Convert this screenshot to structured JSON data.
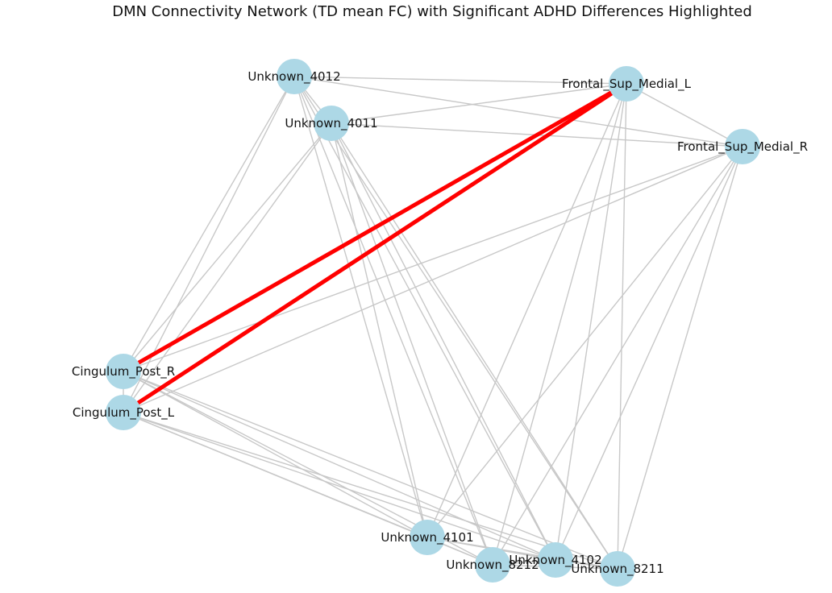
{
  "title": "DMN Connectivity Network (TD mean FC) with Significant ADHD Differences Highlighted",
  "colors": {
    "node_fill": "#add8e6",
    "edge_normal": "#c8c8c8",
    "edge_significant": "#ff0000"
  },
  "nodes": [
    {
      "id": "Unknown_4012",
      "label": "Unknown_4012"
    },
    {
      "id": "Unknown_4011",
      "label": "Unknown_4011"
    },
    {
      "id": "Frontal_Sup_Medial_L",
      "label": "Frontal_Sup_Medial_L"
    },
    {
      "id": "Frontal_Sup_Medial_R",
      "label": "Frontal_Sup_Medial_R"
    },
    {
      "id": "Cingulum_Post_R",
      "label": "Cingulum_Post_R"
    },
    {
      "id": "Cingulum_Post_L",
      "label": "Cingulum_Post_L"
    },
    {
      "id": "Unknown_4101",
      "label": "Unknown_4101"
    },
    {
      "id": "Unknown_8212",
      "label": "Unknown_8212"
    },
    {
      "id": "Unknown_4102",
      "label": "Unknown_4102"
    },
    {
      "id": "Unknown_8211",
      "label": "Unknown_8211"
    }
  ],
  "edges": [
    [
      "Unknown_4012",
      "Unknown_4011"
    ],
    [
      "Unknown_4012",
      "Frontal_Sup_Medial_L"
    ],
    [
      "Unknown_4012",
      "Frontal_Sup_Medial_R"
    ],
    [
      "Unknown_4012",
      "Cingulum_Post_R"
    ],
    [
      "Unknown_4012",
      "Cingulum_Post_L"
    ],
    [
      "Unknown_4012",
      "Unknown_4101"
    ],
    [
      "Unknown_4012",
      "Unknown_8212"
    ],
    [
      "Unknown_4012",
      "Unknown_4102"
    ],
    [
      "Unknown_4012",
      "Unknown_8211"
    ],
    [
      "Unknown_4011",
      "Frontal_Sup_Medial_L"
    ],
    [
      "Unknown_4011",
      "Frontal_Sup_Medial_R"
    ],
    [
      "Unknown_4011",
      "Cingulum_Post_R"
    ],
    [
      "Unknown_4011",
      "Cingulum_Post_L"
    ],
    [
      "Unknown_4011",
      "Unknown_4101"
    ],
    [
      "Unknown_4011",
      "Unknown_8212"
    ],
    [
      "Unknown_4011",
      "Unknown_4102"
    ],
    [
      "Unknown_4011",
      "Unknown_8211"
    ],
    [
      "Frontal_Sup_Medial_L",
      "Frontal_Sup_Medial_R"
    ],
    [
      "Frontal_Sup_Medial_L",
      "Unknown_4101"
    ],
    [
      "Frontal_Sup_Medial_L",
      "Unknown_8212"
    ],
    [
      "Frontal_Sup_Medial_L",
      "Unknown_4102"
    ],
    [
      "Frontal_Sup_Medial_L",
      "Unknown_8211"
    ],
    [
      "Frontal_Sup_Medial_R",
      "Cingulum_Post_R"
    ],
    [
      "Frontal_Sup_Medial_R",
      "Cingulum_Post_L"
    ],
    [
      "Frontal_Sup_Medial_R",
      "Unknown_4101"
    ],
    [
      "Frontal_Sup_Medial_R",
      "Unknown_8212"
    ],
    [
      "Frontal_Sup_Medial_R",
      "Unknown_4102"
    ],
    [
      "Frontal_Sup_Medial_R",
      "Unknown_8211"
    ],
    [
      "Cingulum_Post_R",
      "Cingulum_Post_L"
    ],
    [
      "Cingulum_Post_R",
      "Unknown_4101"
    ],
    [
      "Cingulum_Post_R",
      "Unknown_8212"
    ],
    [
      "Cingulum_Post_R",
      "Unknown_4102"
    ],
    [
      "Cingulum_Post_R",
      "Unknown_8211"
    ],
    [
      "Cingulum_Post_L",
      "Unknown_4101"
    ],
    [
      "Cingulum_Post_L",
      "Unknown_8212"
    ],
    [
      "Cingulum_Post_L",
      "Unknown_4102"
    ],
    [
      "Cingulum_Post_L",
      "Unknown_8211"
    ],
    [
      "Unknown_4101",
      "Unknown_8212"
    ],
    [
      "Unknown_4101",
      "Unknown_4102"
    ],
    [
      "Unknown_4101",
      "Unknown_8211"
    ],
    [
      "Unknown_8212",
      "Unknown_4102"
    ],
    [
      "Unknown_8212",
      "Unknown_8211"
    ],
    [
      "Unknown_4102",
      "Unknown_8211"
    ]
  ],
  "significant_edges": [
    [
      "Frontal_Sup_Medial_L",
      "Cingulum_Post_R"
    ],
    [
      "Frontal_Sup_Medial_L",
      "Cingulum_Post_L"
    ]
  ]
}
